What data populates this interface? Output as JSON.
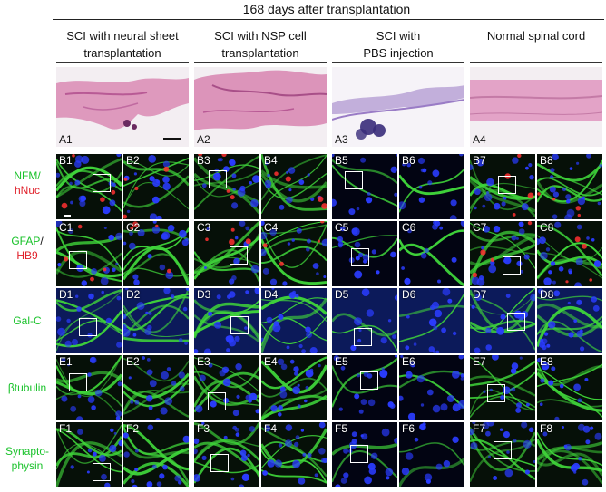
{
  "figure": {
    "title": "168 days after transplantation",
    "columns": [
      {
        "line1": "SCI with neural sheet",
        "line2": "transplantation"
      },
      {
        "line1": "SCI with NSP cell",
        "line2": "transplantation"
      },
      {
        "line1": "SCI with",
        "line2": "PBS injection"
      },
      {
        "line1": "Normal spinal cord",
        "line2": ""
      }
    ],
    "he_panels": [
      "A1",
      "A2",
      "A3",
      "A4"
    ],
    "rows": [
      {
        "label_parts": [
          {
            "text": "NFM",
            "color": "green"
          },
          {
            "text": "/",
            "color": "green"
          },
          {
            "text": "hNuc",
            "color": "red"
          }
        ],
        "panels": [
          "B1",
          "B2",
          "B3",
          "B4",
          "B5",
          "B6",
          "B7",
          "B8"
        ]
      },
      {
        "label_parts": [
          {
            "text": "GFAP",
            "color": "green"
          },
          {
            "text": "/",
            "color": "black"
          },
          {
            "text": "HB9",
            "color": "red"
          }
        ],
        "panels": [
          "C1",
          "C2",
          "C3",
          "C4",
          "C5",
          "C6",
          "C7",
          "C8"
        ]
      },
      {
        "label_parts": [
          {
            "text": "Gal-C",
            "color": "green"
          }
        ],
        "panels": [
          "D1",
          "D2",
          "D3",
          "D4",
          "D5",
          "D6",
          "D7",
          "D8"
        ]
      },
      {
        "label_parts": [
          {
            "text": "βtubulin",
            "color": "green"
          }
        ],
        "panels": [
          "E1",
          "E2",
          "E3",
          "E4",
          "E5",
          "E6",
          "E7",
          "E8"
        ]
      },
      {
        "label_parts": [
          {
            "text": "Synapto-",
            "color": "green"
          },
          {
            "text": "physin",
            "color": "green"
          }
        ],
        "panels": [
          "F1",
          "F2",
          "F3",
          "F4",
          "F5",
          "F6",
          "F7",
          "F8"
        ]
      }
    ],
    "colors": {
      "green_label": "#19c22a",
      "red_label": "#e0202a",
      "he_stain": "#d98ab4",
      "fluor_green": "#3fd43a",
      "fluor_blue": "#2a3cff",
      "fluor_red": "#ff3030"
    }
  }
}
